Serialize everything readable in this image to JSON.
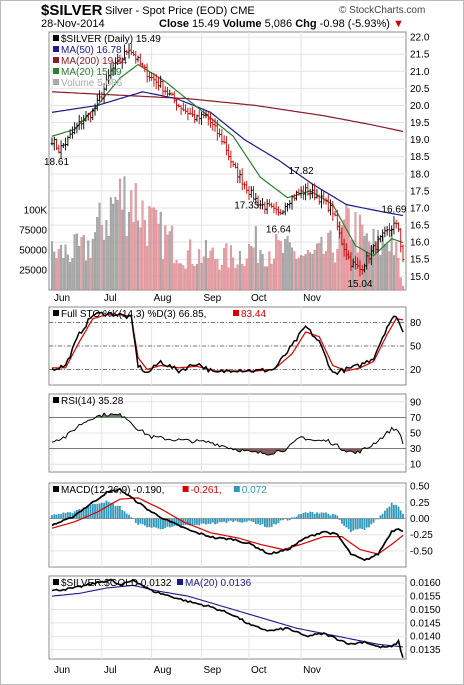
{
  "header": {
    "symbol": "$SILVER",
    "description": "Silver - Spot Price (EOD) CME",
    "watermark": "© StockCharts.com",
    "date": "28-Nov-2014",
    "quote": {
      "close_label": "Close",
      "close": "15.49",
      "volume_label": "Volume",
      "volume": "5,086",
      "chg_label": "Chg",
      "chg": "-0.98 (-5.93%)",
      "chg_arrow": "▼"
    }
  },
  "colors": {
    "up_candle": "#000000",
    "down_candle": "#cc0000",
    "ma50": "#1a1a8c",
    "ma200": "#8b1a2a",
    "ma20": "#2e7d32",
    "volume_up": "#aaaaaa",
    "volume_down": "#e8a0a8",
    "k_line": "#000000",
    "d_line": "#dd0000",
    "rsi_line": "#000000",
    "rsi_overbought_fill": "#5a8a5a",
    "rsi_oversold_fill": "#8a5a5a",
    "macd_line": "#000000",
    "signal_line": "#dd0000",
    "histogram": "#3399bb",
    "ratio_line": "#000000",
    "ratio_ma": "#1a1a8c"
  },
  "chart_data": [
    {
      "type": "ohlc-price",
      "panel": "price",
      "legend": [
        {
          "label": "$SILVER (Daily) 15.49",
          "color": "#000000"
        },
        {
          "label": "MA(50) 16.78",
          "color": "#1a1a8c"
        },
        {
          "label": "MA(200) 19.24",
          "color": "#8b1a2a"
        },
        {
          "label": "MA(20) 15.99",
          "color": "#2e7d32"
        },
        {
          "label": "Volume 5,086",
          "color": "#aaaaaa"
        }
      ],
      "y_ticks": [
        "22.0",
        "21.5",
        "21.0",
        "20.5",
        "20.0",
        "19.5",
        "19.0",
        "18.5",
        "18.0",
        "17.5",
        "17.0",
        "16.5",
        "16.0",
        "15.5",
        "15.0"
      ],
      "ylim": [
        14.6,
        22.15
      ],
      "volume_ticks": [
        "100K",
        "75000",
        "50000",
        "25000"
      ],
      "volume_lim": [
        0,
        150000
      ],
      "annotations": [
        {
          "text": "18.61",
          "day": 2,
          "value": 18.61
        },
        {
          "text": "17.33",
          "day": 86,
          "value": 17.33
        },
        {
          "text": "16.64",
          "day": 100,
          "value": 16.64
        },
        {
          "text": "17.82",
          "day": 110,
          "value": 17.82
        },
        {
          "text": "15.04",
          "day": 136,
          "value": 15.04
        },
        {
          "text": "16.69",
          "day": 151,
          "value": 16.69
        }
      ],
      "anchors": {
        "close": [
          [
            0,
            19.0
          ],
          [
            3,
            18.7
          ],
          [
            6,
            18.9
          ],
          [
            10,
            19.3
          ],
          [
            14,
            19.6
          ],
          [
            18,
            19.8
          ],
          [
            22,
            20.3
          ],
          [
            26,
            21.0
          ],
          [
            30,
            21.3
          ],
          [
            34,
            21.7
          ],
          [
            37,
            21.4
          ],
          [
            40,
            21.1
          ],
          [
            44,
            20.8
          ],
          [
            48,
            20.6
          ],
          [
            52,
            20.3
          ],
          [
            56,
            20.0
          ],
          [
            60,
            19.8
          ],
          [
            64,
            19.6
          ],
          [
            68,
            19.7
          ],
          [
            72,
            19.3
          ],
          [
            76,
            18.9
          ],
          [
            80,
            18.2
          ],
          [
            84,
            17.8
          ],
          [
            88,
            17.4
          ],
          [
            92,
            17.1
          ],
          [
            96,
            17.0
          ],
          [
            100,
            16.8
          ],
          [
            104,
            17.2
          ],
          [
            108,
            17.4
          ],
          [
            112,
            17.5
          ],
          [
            116,
            17.4
          ],
          [
            120,
            17.2
          ],
          [
            124,
            16.9
          ],
          [
            128,
            16.0
          ],
          [
            132,
            15.4
          ],
          [
            136,
            15.2
          ],
          [
            140,
            15.6
          ],
          [
            144,
            16.0
          ],
          [
            148,
            16.3
          ],
          [
            151,
            16.5
          ],
          [
            153,
            16.4
          ],
          [
            155,
            15.49
          ]
        ],
        "ma50": [
          [
            0,
            19.8
          ],
          [
            20,
            20.0
          ],
          [
            40,
            20.4
          ],
          [
            55,
            20.2
          ],
          [
            70,
            19.8
          ],
          [
            85,
            19.0
          ],
          [
            100,
            18.4
          ],
          [
            115,
            17.7
          ],
          [
            130,
            17.1
          ],
          [
            145,
            16.9
          ],
          [
            155,
            16.78
          ]
        ],
        "ma200": [
          [
            0,
            20.4
          ],
          [
            30,
            20.3
          ],
          [
            60,
            20.2
          ],
          [
            90,
            20.0
          ],
          [
            120,
            19.7
          ],
          [
            140,
            19.45
          ],
          [
            155,
            19.24
          ]
        ],
        "ma20": [
          [
            0,
            19.1
          ],
          [
            10,
            19.3
          ],
          [
            20,
            20.0
          ],
          [
            30,
            20.8
          ],
          [
            38,
            21.2
          ],
          [
            50,
            20.7
          ],
          [
            65,
            19.9
          ],
          [
            80,
            19.1
          ],
          [
            92,
            17.9
          ],
          [
            104,
            17.3
          ],
          [
            114,
            17.5
          ],
          [
            124,
            17.1
          ],
          [
            134,
            15.9
          ],
          [
            142,
            15.6
          ],
          [
            150,
            16.1
          ],
          [
            155,
            15.99
          ]
        ],
        "volume": [
          [
            0,
            45000
          ],
          [
            15,
            50000
          ],
          [
            28,
            110000
          ],
          [
            35,
            120000
          ],
          [
            45,
            75000
          ],
          [
            60,
            45000
          ],
          [
            80,
            40000
          ],
          [
            90,
            55000
          ],
          [
            100,
            50000
          ],
          [
            115,
            40000
          ],
          [
            125,
            55000
          ],
          [
            132,
            85000
          ],
          [
            138,
            60000
          ],
          [
            145,
            55000
          ],
          [
            150,
            70000
          ],
          [
            155,
            5086
          ]
        ]
      }
    },
    {
      "type": "line",
      "panel": "stochastic",
      "legend": [
        {
          "label": "Full STO %K(14,3) %D(3) 66.85,",
          "color": "#000000"
        },
        {
          "label": "83.44",
          "color": "#dd0000"
        }
      ],
      "y_ticks": [
        "80",
        "50",
        "20"
      ],
      "ylim": [
        0,
        100
      ],
      "reference_lines": [
        20,
        50,
        80
      ],
      "anchors": {
        "k": [
          [
            0,
            20
          ],
          [
            6,
            25
          ],
          [
            12,
            65
          ],
          [
            18,
            90
          ],
          [
            24,
            92
          ],
          [
            30,
            90
          ],
          [
            35,
            86
          ],
          [
            38,
            25
          ],
          [
            42,
            15
          ],
          [
            48,
            30
          ],
          [
            56,
            18
          ],
          [
            64,
            28
          ],
          [
            72,
            15
          ],
          [
            80,
            20
          ],
          [
            90,
            18
          ],
          [
            98,
            20
          ],
          [
            106,
            50
          ],
          [
            112,
            75
          ],
          [
            118,
            55
          ],
          [
            124,
            15
          ],
          [
            130,
            20
          ],
          [
            136,
            25
          ],
          [
            142,
            35
          ],
          [
            148,
            75
          ],
          [
            152,
            90
          ],
          [
            155,
            66.85
          ]
        ],
        "d": [
          [
            0,
            22
          ],
          [
            6,
            22
          ],
          [
            12,
            55
          ],
          [
            18,
            85
          ],
          [
            24,
            90
          ],
          [
            30,
            90
          ],
          [
            35,
            88
          ],
          [
            38,
            35
          ],
          [
            42,
            20
          ],
          [
            48,
            25
          ],
          [
            56,
            22
          ],
          [
            64,
            24
          ],
          [
            72,
            18
          ],
          [
            80,
            18
          ],
          [
            90,
            18
          ],
          [
            98,
            20
          ],
          [
            106,
            40
          ],
          [
            112,
            68
          ],
          [
            118,
            62
          ],
          [
            124,
            25
          ],
          [
            130,
            18
          ],
          [
            136,
            22
          ],
          [
            142,
            30
          ],
          [
            148,
            65
          ],
          [
            152,
            85
          ],
          [
            155,
            83.44
          ]
        ]
      }
    },
    {
      "type": "line",
      "panel": "rsi",
      "legend": [
        {
          "label": "RSI(14) 35.28",
          "color": "#000000"
        }
      ],
      "y_ticks": [
        "90",
        "70",
        "50",
        "30",
        "10"
      ],
      "ylim": [
        0,
        100
      ],
      "reference_lines": [
        30,
        70
      ],
      "anchors": {
        "rsi": [
          [
            0,
            40
          ],
          [
            6,
            45
          ],
          [
            12,
            60
          ],
          [
            18,
            70
          ],
          [
            24,
            74
          ],
          [
            32,
            72
          ],
          [
            38,
            55
          ],
          [
            44,
            45
          ],
          [
            52,
            42
          ],
          [
            60,
            40
          ],
          [
            70,
            38
          ],
          [
            80,
            30
          ],
          [
            88,
            25
          ],
          [
            96,
            24
          ],
          [
            104,
            30
          ],
          [
            110,
            45
          ],
          [
            116,
            40
          ],
          [
            122,
            40
          ],
          [
            128,
            30
          ],
          [
            134,
            24
          ],
          [
            140,
            32
          ],
          [
            146,
            45
          ],
          [
            150,
            55
          ],
          [
            153,
            54
          ],
          [
            155,
            35.28
          ]
        ]
      }
    },
    {
      "type": "line",
      "panel": "macd",
      "legend": [
        {
          "label": "MACD(12,26,9) -0.190,",
          "color": "#000000"
        },
        {
          "label": "-0.261,",
          "color": "#dd0000"
        },
        {
          "label": "0.072",
          "color": "#3399bb"
        }
      ],
      "y_ticks": [
        "0.50",
        "0.25",
        "0.00",
        "-0.25",
        "-0.50"
      ],
      "ylim": [
        -0.75,
        0.55
      ],
      "anchors": {
        "macd": [
          [
            0,
            -0.1
          ],
          [
            8,
            0.0
          ],
          [
            16,
            0.2
          ],
          [
            24,
            0.4
          ],
          [
            30,
            0.45
          ],
          [
            36,
            0.3
          ],
          [
            44,
            0.1
          ],
          [
            52,
            -0.05
          ],
          [
            62,
            -0.2
          ],
          [
            72,
            -0.3
          ],
          [
            80,
            -0.32
          ],
          [
            88,
            -0.4
          ],
          [
            96,
            -0.55
          ],
          [
            104,
            -0.48
          ],
          [
            112,
            -0.3
          ],
          [
            120,
            -0.2
          ],
          [
            126,
            -0.25
          ],
          [
            132,
            -0.55
          ],
          [
            138,
            -0.65
          ],
          [
            144,
            -0.55
          ],
          [
            150,
            -0.2
          ],
          [
            153,
            -0.15
          ],
          [
            155,
            -0.19
          ]
        ],
        "signal": [
          [
            0,
            -0.15
          ],
          [
            10,
            -0.05
          ],
          [
            20,
            0.1
          ],
          [
            30,
            0.3
          ],
          [
            38,
            0.32
          ],
          [
            48,
            0.15
          ],
          [
            58,
            -0.05
          ],
          [
            70,
            -0.22
          ],
          [
            82,
            -0.3
          ],
          [
            92,
            -0.4
          ],
          [
            102,
            -0.48
          ],
          [
            110,
            -0.4
          ],
          [
            120,
            -0.28
          ],
          [
            128,
            -0.28
          ],
          [
            136,
            -0.48
          ],
          [
            144,
            -0.55
          ],
          [
            150,
            -0.4
          ],
          [
            155,
            -0.261
          ]
        ]
      }
    },
    {
      "type": "line",
      "panel": "ratio",
      "legend": [
        {
          "label": "$SILVER:$GOLD 0.0132",
          "color": "#000000"
        },
        {
          "label": "MA(20) 0.0136",
          "color": "#1a1a8c"
        }
      ],
      "y_ticks": [
        "0.0160",
        "0.0155",
        "0.0150",
        "0.0145",
        "0.0140",
        "0.0135"
      ],
      "ylim": [
        0.01315,
        0.01625
      ],
      "anchors": {
        "ratio": [
          [
            0,
            0.0157
          ],
          [
            10,
            0.0158
          ],
          [
            20,
            0.016
          ],
          [
            26,
            0.0161
          ],
          [
            30,
            0.0159
          ],
          [
            36,
            0.0161
          ],
          [
            44,
            0.0157
          ],
          [
            52,
            0.0155
          ],
          [
            60,
            0.0153
          ],
          [
            70,
            0.0151
          ],
          [
            80,
            0.0148
          ],
          [
            88,
            0.0144
          ],
          [
            96,
            0.0142
          ],
          [
            104,
            0.0143
          ],
          [
            112,
            0.014
          ],
          [
            120,
            0.0141
          ],
          [
            126,
            0.0139
          ],
          [
            132,
            0.0137
          ],
          [
            138,
            0.0138
          ],
          [
            144,
            0.0136
          ],
          [
            150,
            0.0136
          ],
          [
            153,
            0.0138
          ],
          [
            155,
            0.0132
          ]
        ],
        "ma": [
          [
            0,
            0.0155
          ],
          [
            12,
            0.0156
          ],
          [
            24,
            0.0158
          ],
          [
            36,
            0.0159
          ],
          [
            46,
            0.0157
          ],
          [
            60,
            0.0155
          ],
          [
            72,
            0.0152
          ],
          [
            84,
            0.0149
          ],
          [
            96,
            0.0146
          ],
          [
            108,
            0.0143
          ],
          [
            120,
            0.0141
          ],
          [
            132,
            0.0139
          ],
          [
            144,
            0.0137
          ],
          [
            155,
            0.0136
          ]
        ]
      }
    }
  ],
  "x_axis": {
    "days": 156,
    "month_labels": [
      {
        "label": "Jun",
        "day": 0
      },
      {
        "label": "Jul",
        "day": 22
      },
      {
        "label": "Aug",
        "day": 44
      },
      {
        "label": "Sep",
        "day": 66
      },
      {
        "label": "Oct",
        "day": 87
      },
      {
        "label": "Nov",
        "day": 110
      }
    ]
  }
}
